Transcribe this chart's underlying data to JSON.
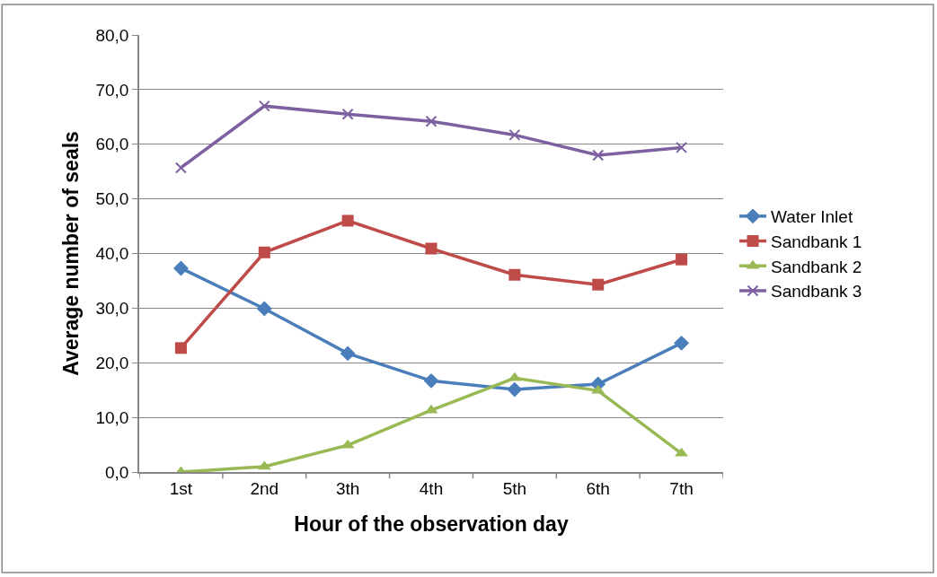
{
  "chart_data": {
    "type": "line",
    "xlabel": "Hour of the observation day",
    "ylabel": "Average number of seals",
    "categories": [
      "1st",
      "2nd",
      "3th",
      "4th",
      "5th",
      "6th",
      "7th"
    ],
    "series": [
      {
        "name": "Water Inlet",
        "color": "#4a7ebb",
        "marker": "diamond",
        "values": [
          37.3,
          29.9,
          21.7,
          16.7,
          15.1,
          16.1,
          23.6
        ]
      },
      {
        "name": "Sandbank 1",
        "color": "#be4b48",
        "marker": "square",
        "values": [
          22.7,
          40.2,
          46.0,
          40.9,
          36.1,
          34.3,
          38.9
        ]
      },
      {
        "name": "Sandbank 2",
        "color": "#98b954",
        "marker": "triangle",
        "values": [
          0.0,
          1.0,
          4.9,
          11.3,
          17.2,
          14.9,
          3.4
        ]
      },
      {
        "name": "Sandbank 3",
        "color": "#7d60a0",
        "marker": "cross",
        "values": [
          55.7,
          67.0,
          65.5,
          64.2,
          61.7,
          58.0,
          59.4
        ]
      }
    ],
    "ylim": [
      0,
      80
    ],
    "yticks": [
      {
        "value": 0,
        "label": "0,0"
      },
      {
        "value": 10,
        "label": "10,0"
      },
      {
        "value": 20,
        "label": "20,0"
      },
      {
        "value": 30,
        "label": "30,0"
      },
      {
        "value": 40,
        "label": "40,0"
      },
      {
        "value": 50,
        "label": "50,0"
      },
      {
        "value": 60,
        "label": "60,0"
      },
      {
        "value": 70,
        "label": "70,0"
      },
      {
        "value": 80,
        "label": "80,0"
      }
    ],
    "grid": "y",
    "legend": "right",
    "line_style": "solid"
  }
}
